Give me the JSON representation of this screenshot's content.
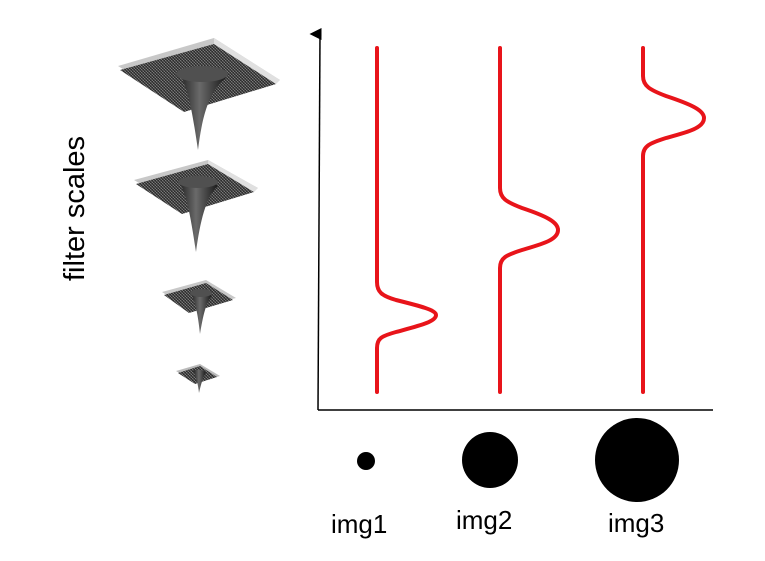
{
  "axis_label": "filter scales",
  "images": [
    {
      "label": "img1",
      "relative_size": 0.22
    },
    {
      "label": "img2",
      "relative_size": 0.67
    },
    {
      "label": "img3",
      "relative_size": 1.0
    }
  ],
  "filters": [
    {
      "scale": 4,
      "relative_size": 1.0
    },
    {
      "scale": 3,
      "relative_size": 0.72
    },
    {
      "scale": 2,
      "relative_size": 0.42
    },
    {
      "scale": 1,
      "relative_size": 0.22
    }
  ],
  "response_peak_scale": [
    1,
    2,
    3
  ],
  "colors": {
    "response": "#e8141a",
    "axis": "#000000",
    "mesh_dark": "#2b2b2b",
    "mesh_light": "#bdbdbd",
    "disk": "#000000"
  }
}
